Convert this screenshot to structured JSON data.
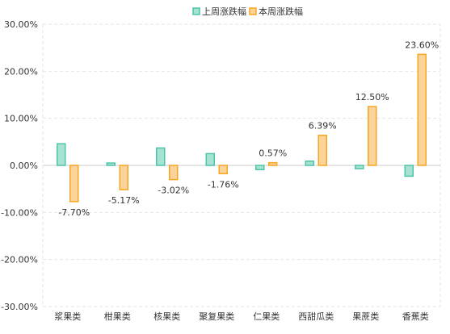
{
  "chart_data": {
    "type": "bar",
    "categories": [
      "浆果类",
      "柑果类",
      "核果类",
      "聚复果类",
      "仁果类",
      "西甜瓜类",
      "果蔗类",
      "香蕉类"
    ],
    "series": [
      {
        "name": "上周涨跌幅",
        "values": [
          4.6,
          0.5,
          3.7,
          2.5,
          -0.9,
          0.9,
          -0.7,
          -2.3
        ],
        "color": "#4fc4a8",
        "fill": "#a6e3d3"
      },
      {
        "name": "本周涨跌幅",
        "values": [
          -7.7,
          -5.17,
          -3.02,
          -1.76,
          0.57,
          6.39,
          12.5,
          23.6
        ],
        "color": "#f5a623",
        "fill": "#fcd49a"
      }
    ],
    "data_labels": {
      "本周涨跌幅": [
        "-7.70%",
        "-5.17%",
        "-3.02%",
        "-1.76%",
        "0.57%",
        "6.39%",
        "12.50%",
        "23.60%"
      ]
    },
    "y_ticks": [
      "30.00%",
      "20.00%",
      "10.00%",
      "0.00%",
      "-10.00%",
      "-20.00%",
      "-30.00%"
    ],
    "ylim": [
      -30,
      30
    ],
    "grid": true,
    "legend_position": "top-center",
    "title": "",
    "xlabel": "",
    "ylabel": ""
  }
}
